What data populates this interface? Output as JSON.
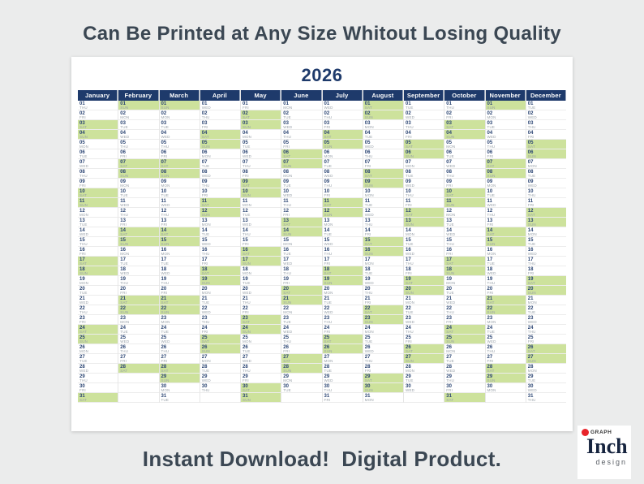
{
  "page": {
    "top_caption": "Can Be Printed at Any Size Whitout Losing Quality",
    "bottom_caption": "Instant Download!  Digital Product."
  },
  "poster": {
    "year": "2026",
    "colors": {
      "header_bg": "#1e3a6b",
      "weekend_highlight": "#cde29c",
      "caption_text": "#3b4753",
      "logo_accent": "#e8242b"
    }
  },
  "logo": {
    "graph_label": "GRAPH",
    "name_first_letter": "I",
    "name_rest": "nch",
    "subtitle": "design"
  },
  "calendar": {
    "weekend_days": [
      "SAT",
      "SUN"
    ],
    "rows": 31,
    "months": [
      {
        "name": "January",
        "days": [
          "01 THU",
          "02 FRI",
          "03 SAT",
          "04 SUN",
          "05 MON",
          "06 TUE",
          "07 WED",
          "08 THU",
          "09 FRI",
          "10 SAT",
          "11 SUN",
          "12 MON",
          "13 TUE",
          "14 WED",
          "15 THU",
          "16 FRI",
          "17 SAT",
          "18 SUN",
          "19 MON",
          "20 TUE",
          "21 WED",
          "22 THU",
          "23 FRI",
          "24 SAT",
          "25 SUN",
          "26 MON",
          "27 TUE",
          "28 WED",
          "29 THU",
          "30 FRI",
          "31 SAT"
        ]
      },
      {
        "name": "February",
        "days": [
          "01 SUN",
          "02 MON",
          "03 TUE",
          "04 WED",
          "05 THU",
          "06 FRI",
          "07 SAT",
          "08 SUN",
          "09 MON",
          "10 TUE",
          "11 WED",
          "12 THU",
          "13 FRI",
          "14 SAT",
          "15 SUN",
          "16 MON",
          "17 TUE",
          "18 WED",
          "19 THU",
          "20 FRI",
          "21 SAT",
          "22 SUN",
          "23 MON",
          "24 TUE",
          "25 WED",
          "26 THU",
          "27 FRI",
          "28 SAT"
        ]
      },
      {
        "name": "March",
        "days": [
          "01 SUN",
          "02 MON",
          "03 TUE",
          "04 WED",
          "05 THU",
          "06 FRI",
          "07 SAT",
          "08 SUN",
          "09 MON",
          "10 TUE",
          "11 WED",
          "12 THU",
          "13 FRI",
          "14 SAT",
          "15 SUN",
          "16 MON",
          "17 TUE",
          "18 WED",
          "19 THU",
          "20 FRI",
          "21 SAT",
          "22 SUN",
          "23 MON",
          "24 TUE",
          "25 WED",
          "26 THU",
          "27 FRI",
          "28 SAT",
          "29 SUN",
          "30 MON",
          "31 TUE"
        ]
      },
      {
        "name": "April",
        "days": [
          "01 WED",
          "02 THU",
          "03 FRI",
          "04 SAT",
          "05 SUN",
          "06 MON",
          "07 TUE",
          "08 WED",
          "09 THU",
          "10 FRI",
          "11 SAT",
          "12 SUN",
          "13 MON",
          "14 TUE",
          "15 WED",
          "16 THU",
          "17 FRI",
          "18 SAT",
          "19 SUN",
          "20 MON",
          "21 TUE",
          "22 WED",
          "23 THU",
          "24 FRI",
          "25 SAT",
          "26 SUN",
          "27 MON",
          "28 TUE",
          "29 WED",
          "30 THU"
        ]
      },
      {
        "name": "May",
        "days": [
          "01 FRI",
          "02 SAT",
          "03 SUN",
          "04 MON",
          "05 TUE",
          "06 WED",
          "07 THU",
          "08 FRI",
          "09 SAT",
          "10 SUN",
          "11 MON",
          "12 TUE",
          "13 WED",
          "14 THU",
          "15 FRI",
          "16 SAT",
          "17 SUN",
          "18 MON",
          "19 TUE",
          "20 WED",
          "21 THU",
          "22 FRI",
          "23 SAT",
          "24 SUN",
          "25 MON",
          "26 TUE",
          "27 WED",
          "28 THU",
          "29 FRI",
          "30 SAT",
          "31 SUN"
        ]
      },
      {
        "name": "June",
        "days": [
          "01 MON",
          "02 TUE",
          "03 WED",
          "04 THU",
          "05 FRI",
          "06 SAT",
          "07 SUN",
          "08 MON",
          "09 TUE",
          "10 WED",
          "11 THU",
          "12 FRI",
          "13 SAT",
          "14 SUN",
          "15 MON",
          "16 TUE",
          "17 WED",
          "18 THU",
          "19 FRI",
          "20 SAT",
          "21 SUN",
          "22 MON",
          "23 TUE",
          "24 WED",
          "25 THU",
          "26 FRI",
          "27 SAT",
          "28 SUN",
          "29 MON",
          "30 TUE"
        ]
      },
      {
        "name": "July",
        "days": [
          "01 WED",
          "02 THU",
          "03 FRI",
          "04 SAT",
          "05 SUN",
          "06 MON",
          "07 TUE",
          "08 WED",
          "09 THU",
          "10 FRI",
          "11 SAT",
          "12 SUN",
          "13 MON",
          "14 TUE",
          "15 WED",
          "16 THU",
          "17 FRI",
          "18 SAT",
          "19 SUN",
          "20 MON",
          "21 TUE",
          "22 WED",
          "23 THU",
          "24 FRI",
          "25 SAT",
          "26 SUN",
          "27 MON",
          "28 TUE",
          "29 WED",
          "30 THU",
          "31 FRI"
        ]
      },
      {
        "name": "August",
        "days": [
          "01 SAT",
          "02 SUN",
          "03 MON",
          "04 TUE",
          "05 WED",
          "06 THU",
          "07 FRI",
          "08 SAT",
          "09 SUN",
          "10 MON",
          "11 TUE",
          "12 WED",
          "13 THU",
          "14 FRI",
          "15 SAT",
          "16 SUN",
          "17 MON",
          "18 TUE",
          "19 WED",
          "20 THU",
          "21 FRI",
          "22 SAT",
          "23 SUN",
          "24 MON",
          "25 TUE",
          "26 WED",
          "27 THU",
          "28 FRI",
          "29 SAT",
          "30 SUN",
          "31 MON"
        ]
      },
      {
        "name": "September",
        "days": [
          "01 TUE",
          "02 WED",
          "03 THU",
          "04 FRI",
          "05 SAT",
          "06 SUN",
          "07 MON",
          "08 TUE",
          "09 WED",
          "10 THU",
          "11 FRI",
          "12 SAT",
          "13 SUN",
          "14 MON",
          "15 TUE",
          "16 WED",
          "17 THU",
          "18 FRI",
          "19 SAT",
          "20 SUN",
          "21 MON",
          "22 TUE",
          "23 WED",
          "24 THU",
          "25 FRI",
          "26 SAT",
          "27 SUN",
          "28 MON",
          "29 TUE",
          "30 WED"
        ]
      },
      {
        "name": "October",
        "days": [
          "01 THU",
          "02 FRI",
          "03 SAT",
          "04 SUN",
          "05 MON",
          "06 TUE",
          "07 WED",
          "08 THU",
          "09 FRI",
          "10 SAT",
          "11 SUN",
          "12 MON",
          "13 TUE",
          "14 WED",
          "15 THU",
          "16 FRI",
          "17 SAT",
          "18 SUN",
          "19 MON",
          "20 TUE",
          "21 WED",
          "22 THU",
          "23 FRI",
          "24 SAT",
          "25 SUN",
          "26 MON",
          "27 TUE",
          "28 WED",
          "29 THU",
          "30 FRI",
          "31 SAT"
        ]
      },
      {
        "name": "November",
        "days": [
          "01 SUN",
          "02 MON",
          "03 TUE",
          "04 WED",
          "05 THU",
          "06 FRI",
          "07 SAT",
          "08 SUN",
          "09 MON",
          "10 TUE",
          "11 WED",
          "12 THU",
          "13 FRI",
          "14 SAT",
          "15 SUN",
          "16 MON",
          "17 TUE",
          "18 WED",
          "19 THU",
          "20 FRI",
          "21 SAT",
          "22 SUN",
          "23 MON",
          "24 TUE",
          "25 WED",
          "26 THU",
          "27 FRI",
          "28 SAT",
          "29 SUN",
          "30 MON"
        ]
      },
      {
        "name": "December",
        "days": [
          "01 TUE",
          "02 WED",
          "03 THU",
          "04 FRI",
          "05 SAT",
          "06 SUN",
          "07 MON",
          "08 TUE",
          "09 WED",
          "10 THU",
          "11 FRI",
          "12 SAT",
          "13 SUN",
          "14 MON",
          "15 TUE",
          "16 WED",
          "17 THU",
          "18 FRI",
          "19 SAT",
          "20 SUN",
          "21 MON",
          "22 TUE",
          "23 WED",
          "24 THU",
          "25 FRI",
          "26 SAT",
          "27 SUN",
          "28 MON",
          "29 TUE",
          "30 WED",
          "31 THU"
        ]
      }
    ]
  }
}
